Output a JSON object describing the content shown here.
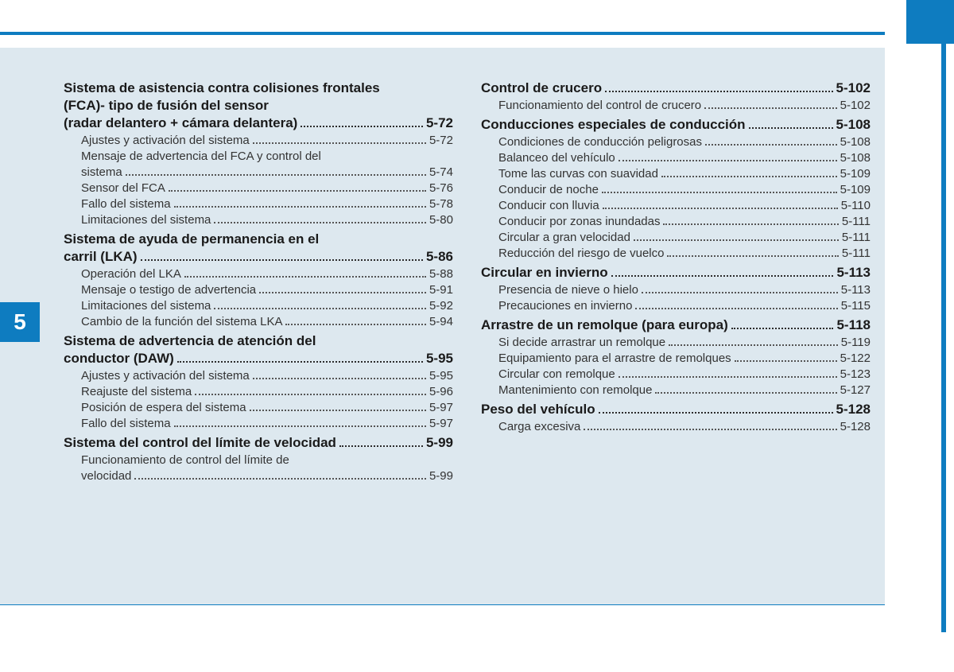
{
  "chapter_number": "5",
  "colors": {
    "accent": "#0e7cc0",
    "page_bg": "#dde8ef",
    "text": "#2c2c2c"
  },
  "left_column": [
    {
      "title_lines": [
        "Sistema de asistencia contra colisiones frontales",
        "(FCA)- tipo de fusión del sensor",
        "(radar delantero + cámara delantera)"
      ],
      "page": "5-72",
      "subs": [
        {
          "text_lines": [
            "Ajustes y activación del sistema"
          ],
          "page": "5-72"
        },
        {
          "text_lines": [
            "Mensaje de advertencia del FCA y control del",
            "sistema"
          ],
          "page": "5-74"
        },
        {
          "text_lines": [
            "Sensor del FCA"
          ],
          "page": "5-76"
        },
        {
          "text_lines": [
            "Fallo del sistema"
          ],
          "page": "5-78"
        },
        {
          "text_lines": [
            "Limitaciones del sistema"
          ],
          "page": "5-80"
        }
      ]
    },
    {
      "title_lines": [
        "Sistema de ayuda de permanencia en el",
        "carril (LKA)"
      ],
      "page": "5-86",
      "subs": [
        {
          "text_lines": [
            "Operación del LKA"
          ],
          "page": "5-88"
        },
        {
          "text_lines": [
            "Mensaje o testigo de advertencia"
          ],
          "page": "5-91"
        },
        {
          "text_lines": [
            "Limitaciones del sistema"
          ],
          "page": "5-92"
        },
        {
          "text_lines": [
            "Cambio de la función del sistema LKA"
          ],
          "page": "5-94"
        }
      ]
    },
    {
      "title_lines": [
        "Sistema de advertencia de atención del",
        "conductor (DAW)"
      ],
      "page": "5-95",
      "subs": [
        {
          "text_lines": [
            "Ajustes y activación del sistema"
          ],
          "page": "5-95"
        },
        {
          "text_lines": [
            "Reajuste del sistema"
          ],
          "page": "5-96"
        },
        {
          "text_lines": [
            "Posición de espera del sistema"
          ],
          "page": "5-97"
        },
        {
          "text_lines": [
            "Fallo del sistema"
          ],
          "page": "5-97"
        }
      ]
    },
    {
      "title_lines": [
        "Sistema del control del límite de velocidad"
      ],
      "page": "5-99",
      "subs": [
        {
          "text_lines": [
            "Funcionamiento de control del límite de",
            "velocidad"
          ],
          "page": "5-99"
        }
      ]
    }
  ],
  "right_column": [
    {
      "title_lines": [
        "Control de crucero"
      ],
      "page": "5-102",
      "subs": [
        {
          "text_lines": [
            "Funcionamiento del control de crucero"
          ],
          "page": "5-102"
        }
      ]
    },
    {
      "title_lines": [
        "Conducciones especiales de conducción"
      ],
      "page": "5-108",
      "subs": [
        {
          "text_lines": [
            "Condiciones  de conducción peligrosas"
          ],
          "page": "5-108"
        },
        {
          "text_lines": [
            "Balanceo del vehículo"
          ],
          "page": "5-108"
        },
        {
          "text_lines": [
            "Tome las curvas con suavidad"
          ],
          "page": "5-109"
        },
        {
          "text_lines": [
            "Conducir de noche"
          ],
          "page": "5-109"
        },
        {
          "text_lines": [
            "Conducir con lluvia"
          ],
          "page": "5-110"
        },
        {
          "text_lines": [
            "Conducir por zonas inundadas"
          ],
          "page": "5-111"
        },
        {
          "text_lines": [
            "Circular a gran velocidad"
          ],
          "page": "5-111"
        },
        {
          "text_lines": [
            "Reducción del riesgo de vuelco"
          ],
          "page": "5-111"
        }
      ]
    },
    {
      "title_lines": [
        "Circular en invierno"
      ],
      "page": "5-113",
      "subs": [
        {
          "text_lines": [
            "Presencia de nieve o hielo"
          ],
          "page": "5-113"
        },
        {
          "text_lines": [
            "Precauciones en invierno"
          ],
          "page": "5-115"
        }
      ]
    },
    {
      "title_lines": [
        "Arrastre de un remolque (para europa)"
      ],
      "page": "5-118",
      "subs": [
        {
          "text_lines": [
            "Si decide arrastrar un remolque"
          ],
          "page": "5-119"
        },
        {
          "text_lines": [
            "Equipamiento para el arrastre de remolques"
          ],
          "page": "5-122"
        },
        {
          "text_lines": [
            "Circular con remolque"
          ],
          "page": "5-123"
        },
        {
          "text_lines": [
            "Mantenimiento con remolque"
          ],
          "page": "5-127"
        }
      ]
    },
    {
      "title_lines": [
        "Peso del vehículo"
      ],
      "page": "5-128",
      "subs": [
        {
          "text_lines": [
            "Carga excesiva"
          ],
          "page": "5-128"
        }
      ]
    }
  ]
}
